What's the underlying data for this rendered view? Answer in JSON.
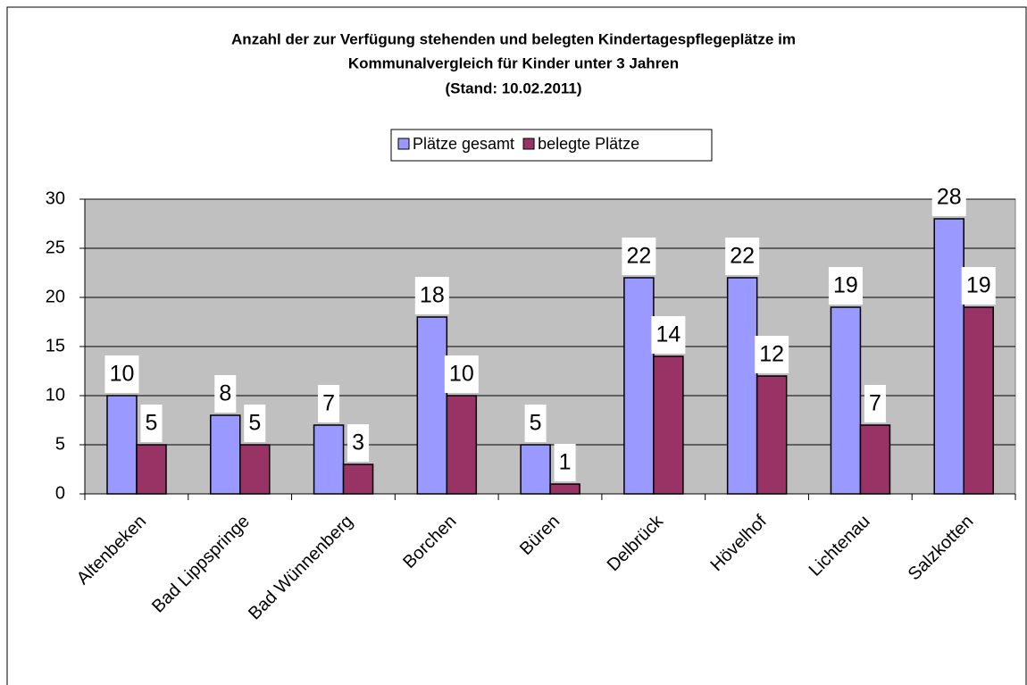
{
  "chart_data": {
    "type": "bar",
    "title": [
      "Anzahl der zur Verfügung stehenden und belegten Kindertagespflegeplätze im",
      "Kommunalvergleich für Kinder unter 3 Jahren",
      "(Stand: 10.02.2011)"
    ],
    "categories": [
      "Altenbeken",
      "Bad Lippspringe",
      "Bad Wünnenberg",
      "Borchen",
      "Büren",
      "Delbrück",
      "Hövelhof",
      "Lichtenau",
      "Salzkotten"
    ],
    "series": [
      {
        "name": "Plätze gesamt",
        "color": "#9999ff",
        "values": [
          10,
          8,
          7,
          18,
          5,
          22,
          22,
          19,
          28
        ]
      },
      {
        "name": "belegte Plätze",
        "color": "#993366",
        "values": [
          5,
          5,
          3,
          10,
          1,
          14,
          12,
          7,
          19
        ]
      }
    ],
    "ylim": [
      0,
      30
    ],
    "yticks": [
      0,
      5,
      10,
      15,
      20,
      25,
      30
    ],
    "grid": true,
    "legend": "top"
  }
}
